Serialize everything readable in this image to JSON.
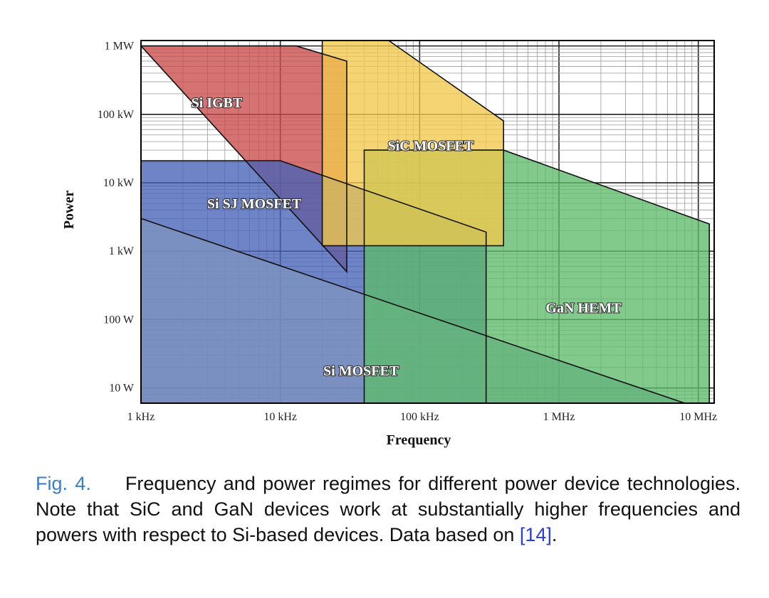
{
  "chart_data": {
    "type": "area",
    "title": "",
    "xlabel": "Frequency",
    "ylabel": "Power",
    "x_scale": "log",
    "y_scale": "log",
    "xlim": [
      "1 kHz",
      "13 MHz"
    ],
    "ylim": [
      "6 W",
      "1.2 MW"
    ],
    "x_ticks": [
      "1 kHz",
      "10 kHz",
      "100 kHz",
      "1 MHz",
      "10 MHz"
    ],
    "y_ticks": [
      "10 W",
      "100 W",
      "1 kW",
      "10 kW",
      "100 kW",
      "1 MW"
    ],
    "grid": true,
    "series": [
      {
        "name": "Si IGBT",
        "color": "#c94a4a",
        "points_hz_w": [
          [
            1000,
            1000000
          ],
          [
            13000,
            1000000
          ],
          [
            30000,
            600000
          ],
          [
            30000,
            500
          ]
        ]
      },
      {
        "name": "Si SJ MOSFET",
        "color": "#4561b6",
        "points_hz_w": [
          [
            1000,
            21000
          ],
          [
            10000,
            21000
          ],
          [
            300000,
            1900
          ],
          [
            300000,
            6
          ],
          [
            1000,
            6
          ]
        ]
      },
      {
        "name": "Si MOSFET",
        "color": "#7e94bf",
        "points_hz_w": [
          [
            1000,
            3000
          ],
          [
            8000000,
            6
          ],
          [
            1000,
            6
          ]
        ]
      },
      {
        "name": "GaN HEMT",
        "color": "#5dbb6c",
        "points_hz_w": [
          [
            40000,
            30000
          ],
          [
            400000,
            30000
          ],
          [
            12000000,
            2500
          ],
          [
            12000000,
            6
          ],
          [
            40000,
            6
          ]
        ]
      },
      {
        "name": "SiC MOSFET",
        "color": "#f2c94c",
        "points_hz_w": [
          [
            20000,
            1200000
          ],
          [
            60000,
            1200000
          ],
          [
            400000,
            80000
          ],
          [
            400000,
            1200
          ],
          [
            20000,
            1200
          ]
        ]
      }
    ]
  },
  "caption": {
    "fig_number": "Fig. 4.",
    "text": "Frequency and power regimes for different power device technologies. Note that SiC and GaN devices work at substantially higher frequencies and powers with respect to Si-based devices. Data based on ",
    "citation": "[14]",
    "end": "."
  }
}
